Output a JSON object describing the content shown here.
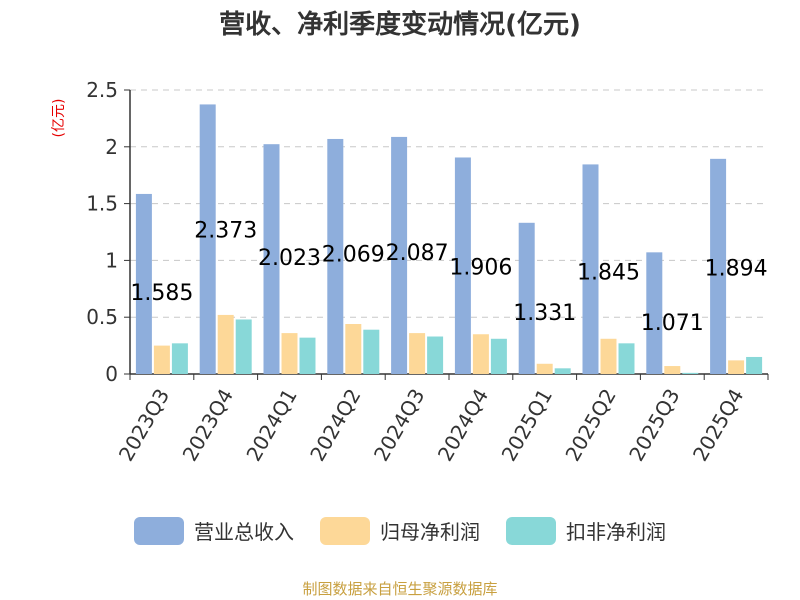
{
  "title": "营收、净利季度变动情况(亿元)",
  "source": "制图数据来自恒生聚源数据库",
  "chart_data": {
    "type": "bar",
    "title": "营收、净利季度变动情况(亿元)",
    "xlabel": "",
    "ylabel": "(亿元)",
    "ylim": [
      0,
      2.5
    ],
    "yticks": [
      "0",
      "0.5",
      "1",
      "1.5",
      "2",
      "2.5"
    ],
    "grid": true,
    "legend_position": "bottom",
    "categories": [
      "2023Q3",
      "2023Q4",
      "2024Q1",
      "2024Q2",
      "2024Q3",
      "2024Q4",
      "2025Q1",
      "2025Q2",
      "2025Q3",
      "2025Q4"
    ],
    "series": [
      {
        "name": "营业总收入",
        "color": "#8eaedc",
        "values": [
          1.585,
          2.373,
          2.023,
          2.069,
          2.087,
          1.906,
          1.331,
          1.845,
          1.071,
          1.894
        ],
        "labels": [
          "1.585",
          "2.373",
          "2.023",
          "2.069",
          "2.087",
          "1.906",
          "1.331",
          "1.845",
          "1.071",
          "1.894"
        ]
      },
      {
        "name": "归母净利润",
        "color": "#fdd898",
        "values": [
          0.25,
          0.52,
          0.36,
          0.44,
          0.36,
          0.35,
          0.09,
          0.31,
          0.07,
          0.12
        ]
      },
      {
        "name": "扣非净利润",
        "color": "#88d8d8",
        "values": [
          0.27,
          0.48,
          0.32,
          0.39,
          0.33,
          0.31,
          0.05,
          0.27,
          0.01,
          0.15
        ]
      }
    ]
  }
}
